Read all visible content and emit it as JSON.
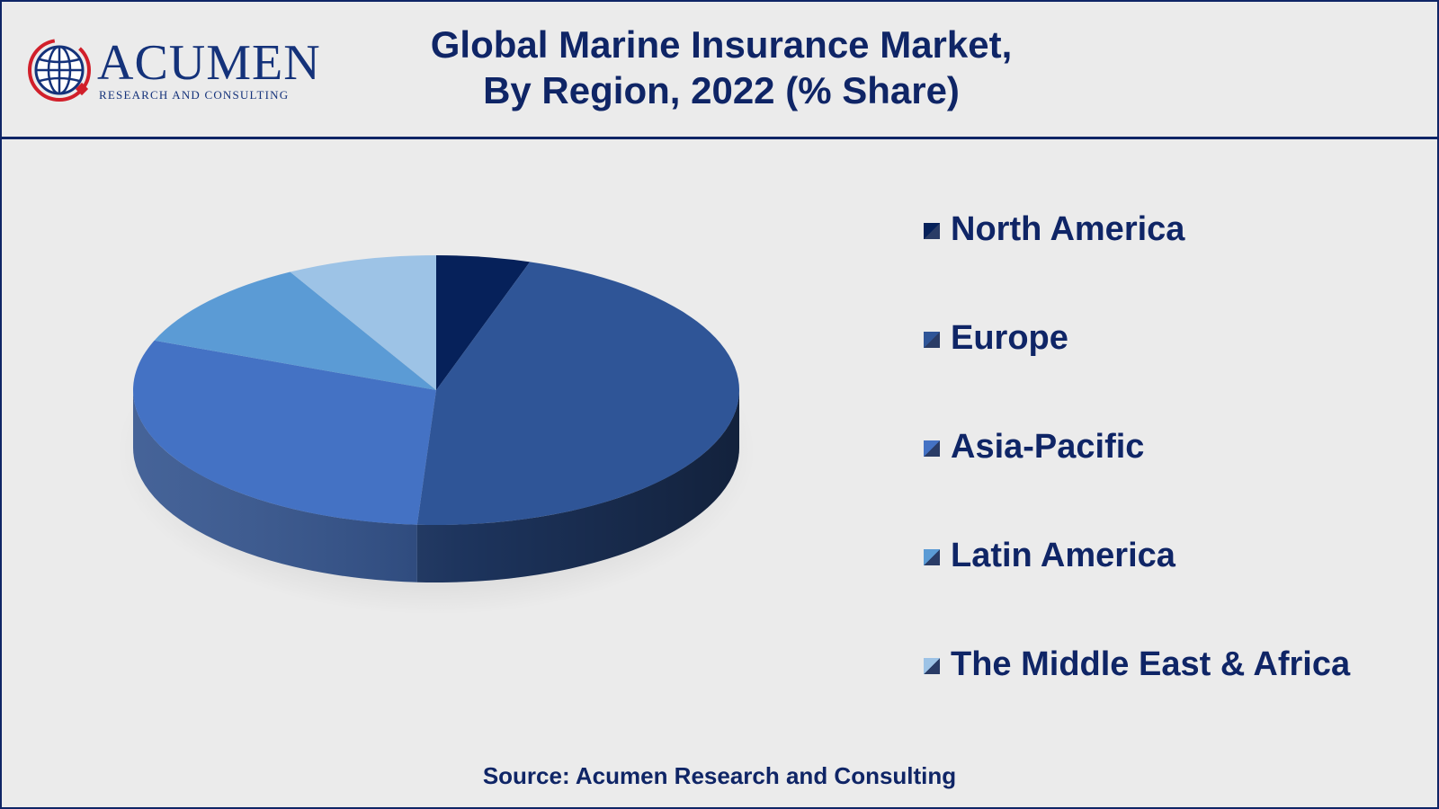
{
  "header": {
    "title_line1": "Global Marine Insurance Market,",
    "title_line2": "By Region, 2022 (% Share)"
  },
  "logo": {
    "name": "ACUMEN",
    "tagline": "RESEARCH AND CONSULTING",
    "icon": "globe-icon"
  },
  "source": "Source: Acumen Research and Consulting",
  "colors": {
    "accent": "#0f2566",
    "background": "#ebebeb"
  },
  "chart_data": {
    "type": "pie",
    "style": "3d",
    "legend_position": "right",
    "categories": [
      "North America",
      "Europe",
      "Asia-Pacific",
      "Latin America",
      "The Middle East & Africa"
    ],
    "values": [
      5,
      46,
      30,
      11,
      8
    ],
    "colors": [
      "#06215a",
      "#2f5597",
      "#4472c4",
      "#5b9bd5",
      "#9dc3e6"
    ]
  }
}
